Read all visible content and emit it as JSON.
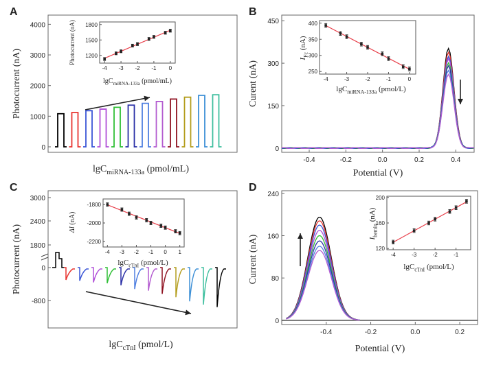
{
  "panels": {
    "A": {
      "letter": "A",
      "ylabel": "Photocurrent (nA)",
      "xlabel_main": "lgC",
      "xlabel_sub": "miRNA-133a",
      "xlabel_unit": " (pmol/mL)",
      "yticks": [
        "0",
        "1000",
        "2000",
        "3000",
        "4000"
      ],
      "inset": {
        "ylabel": "Photocurrent (nA)",
        "xlabel_main": "lgC",
        "xlabel_sub": "miRNA-133a",
        "xlabel_unit": " (pmol/mL)",
        "xticks": [
          "-4",
          "-3",
          "-2",
          "-1",
          "0"
        ],
        "yticks": [
          "1200",
          "1500",
          "1800"
        ]
      }
    },
    "B": {
      "letter": "B",
      "ylabel": "Curent (nA)",
      "xlabel": "Potential (V)",
      "xticks": [
        "-0.4",
        "-0.2",
        "0.0",
        "0.2",
        "0.4"
      ],
      "yticks": [
        "0",
        "150",
        "300",
        "450"
      ],
      "inset": {
        "ylabel_main": "I",
        "ylabel_sub": "Fc",
        "ylabel_unit": " (nA)",
        "xlabel_main": "lgC",
        "xlabel_sub": "miRNA-133a",
        "xlabel_unit": " (pmol/L)",
        "xticks": [
          "-4",
          "-3",
          "-2",
          "-1",
          "0"
        ],
        "yticks": [
          "250",
          "300",
          "350",
          "400"
        ]
      }
    },
    "C": {
      "letter": "C",
      "ylabel": "Photocurrent (nA)",
      "xlabel_main": "lgC",
      "xlabel_sub": "cTnI",
      "xlabel_unit": " (pmol/L)",
      "yticks": [
        "3000",
        "2400",
        "1800",
        "0",
        "-800"
      ],
      "inset": {
        "ylabel_main": "ΔI",
        "ylabel_unit": " (nA)",
        "xlabel_main": "lgC",
        "xlabel_sub": "cTnI",
        "xlabel_unit": " (pmol/L)",
        "xticks": [
          "-4",
          "-3",
          "-2",
          "-1",
          "0",
          "1"
        ],
        "yticks": [
          "-1800",
          "-2000",
          "-2200"
        ]
      }
    },
    "D": {
      "letter": "D",
      "ylabel": "Current (nA)",
      "xlabel": "Potential (V)",
      "xticks": [
        "-0.4",
        "-0.2",
        "0.0",
        "0.2"
      ],
      "yticks": [
        "0",
        "80",
        "160",
        "240"
      ],
      "inset": {
        "ylabel_main": "I",
        "ylabel_sub": "hemin",
        "ylabel_unit": " (nA)",
        "xlabel_main": "lgC",
        "xlabel_sub": "cTnI",
        "xlabel_unit": " (pmol/L)",
        "xticks": [
          "-4",
          "-3",
          "-2",
          "-1"
        ],
        "yticks": [
          "120",
          "160",
          "200"
        ]
      }
    }
  },
  "colors": {
    "series": [
      "#000000",
      "#e8332f",
      "#3a55d6",
      "#b04fd8",
      "#2fbf35",
      "#2a2fa6",
      "#4f7fe0",
      "#b45cd0",
      "#8f1221",
      "#b49d1d",
      "#3c8fd6",
      "#3fbf9f"
    ],
    "fit": "#e8404b",
    "arrow": "#222222"
  },
  "chart_data": [
    {
      "panel": "A",
      "type": "bar",
      "ylim": [
        0,
        4300
      ],
      "values": [
        1080,
        1120,
        1180,
        1230,
        1290,
        1360,
        1420,
        1480,
        1560,
        1620,
        1680,
        1700
      ],
      "inset": {
        "type": "scatter",
        "x": [
          -4,
          -3.3,
          -3,
          -2.3,
          -2,
          -1.3,
          -1,
          -0.3,
          0
        ],
        "y": [
          1130,
          1240,
          1280,
          1390,
          1420,
          1520,
          1560,
          1640,
          1680
        ],
        "xlim": [
          -4.3,
          0.3
        ],
        "ylim": [
          1050,
          1850
        ]
      }
    },
    {
      "panel": "B",
      "type": "line",
      "xlim": [
        -0.55,
        0.5
      ],
      "ylim": [
        -15,
        470
      ],
      "peak_x": 0.36,
      "peaks": [
        353,
        340,
        325,
        315,
        300,
        290,
        275,
        262
      ],
      "inset": {
        "type": "scatter",
        "x": [
          -4,
          -3.3,
          -3,
          -2.3,
          -2,
          -1.3,
          -1,
          -0.3,
          0
        ],
        "y": [
          393,
          368,
          358,
          335,
          325,
          305,
          290,
          265,
          258
        ],
        "xlim": [
          -4.3,
          0.3
        ],
        "ylim": [
          242,
          408
        ]
      }
    },
    {
      "panel": "C",
      "type": "bar",
      "values": [
        -300,
        -320,
        -360,
        -380,
        -430,
        -520,
        -560,
        -640,
        -720,
        -820,
        -900,
        -960
      ],
      "inset": {
        "type": "scatter",
        "x": [
          -4,
          -3,
          -2.5,
          -2,
          -1.3,
          -1,
          -0.3,
          0,
          0.7,
          1
        ],
        "y": [
          -1800,
          -1855,
          -1900,
          -1940,
          -1970,
          -2000,
          -2030,
          -2050,
          -2090,
          -2110
        ],
        "xlim": [
          -4.3,
          1.3
        ],
        "ylim": [
          -2260,
          -1740
        ]
      }
    },
    {
      "panel": "D",
      "type": "line",
      "xlim": [
        -0.6,
        0.28
      ],
      "ylim": [
        -8,
        245
      ],
      "peak_x": -0.43,
      "peaks": [
        195,
        188,
        180,
        170,
        160,
        150,
        140,
        132
      ],
      "inset": {
        "type": "scatter",
        "x": [
          -4,
          -3,
          -2.3,
          -2,
          -1.3,
          -1,
          -0.5
        ],
        "y": [
          130,
          148,
          160,
          166,
          178,
          184,
          194
        ],
        "xlim": [
          -4.3,
          -0.3
        ],
        "ylim": [
          118,
          202
        ]
      }
    }
  ]
}
